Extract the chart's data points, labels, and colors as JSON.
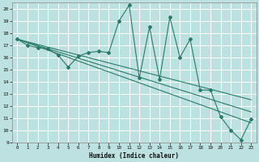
{
  "xlabel": "Humidex (Indice chaleur)",
  "xlim": [
    -0.5,
    23.5
  ],
  "ylim": [
    9,
    20.5
  ],
  "yticks": [
    9,
    10,
    11,
    12,
    13,
    14,
    15,
    16,
    17,
    18,
    19,
    20
  ],
  "xticks": [
    0,
    1,
    2,
    3,
    4,
    5,
    6,
    7,
    8,
    9,
    10,
    11,
    12,
    13,
    14,
    15,
    16,
    17,
    18,
    19,
    20,
    21,
    22,
    23
  ],
  "bg_color": "#bde0e0",
  "line_color": "#2a7a6a",
  "grid_color": "#ffffff",
  "main_line_x": [
    0,
    1,
    2,
    3,
    4,
    5,
    6,
    7,
    8,
    9,
    10,
    11,
    12,
    13,
    14,
    15,
    16,
    17,
    18,
    19,
    20,
    21,
    22,
    23
  ],
  "main_line_y": [
    17.5,
    17.0,
    16.8,
    16.7,
    16.2,
    15.2,
    16.1,
    16.4,
    16.5,
    16.4,
    19.0,
    20.3,
    14.3,
    18.5,
    14.2,
    19.3,
    16.0,
    17.5,
    13.3,
    13.3,
    11.1,
    10.0,
    9.2,
    10.9
  ],
  "trend_lines": [
    {
      "x": [
        0,
        23
      ],
      "y": [
        17.5,
        10.6
      ]
    },
    {
      "x": [
        0,
        23
      ],
      "y": [
        17.5,
        11.5
      ]
    },
    {
      "x": [
        0,
        23
      ],
      "y": [
        17.5,
        12.5
      ]
    }
  ]
}
